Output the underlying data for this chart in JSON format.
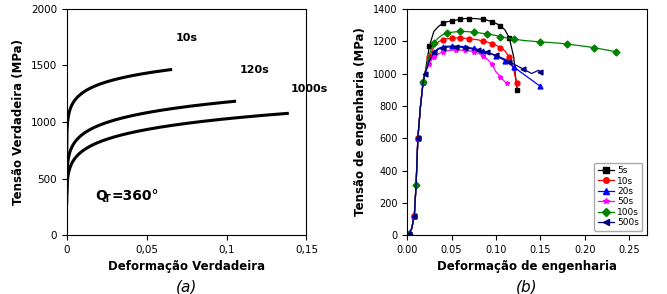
{
  "left": {
    "xlabel": "Deformação Verdadeira",
    "ylabel": "Tensão Verdadeira (MPa)",
    "xlim": [
      0,
      0.15
    ],
    "ylim": [
      0,
      2000
    ],
    "xticks": [
      0,
      0.05,
      0.1,
      0.15
    ],
    "xtick_labels": [
      "0",
      "0,05",
      "0,1",
      "0,15"
    ],
    "yticks": [
      0,
      500,
      1000,
      1500,
      2000
    ],
    "annotation": "Q",
    "annotation2": "=360°",
    "curves": [
      {
        "label": "10s",
        "C": 1820,
        "n": 0.08,
        "x_end": 0.065,
        "x_label": 0.068,
        "y_label": 1720
      },
      {
        "label": "120s",
        "C": 1550,
        "n": 0.12,
        "x_end": 0.105,
        "x_label": 0.108,
        "y_label": 1430
      },
      {
        "label": "1000s",
        "C": 1420,
        "n": 0.14,
        "x_end": 0.138,
        "x_label": 0.14,
        "y_label": 1265
      }
    ],
    "caption": "(a)"
  },
  "right": {
    "xlabel": "Deformação de engenharia",
    "ylabel": "Tensão de engenharia (MPa)",
    "xlim": [
      0.0,
      0.27
    ],
    "ylim": [
      0,
      1400
    ],
    "xticks": [
      0.0,
      0.05,
      0.1,
      0.15,
      0.2,
      0.25
    ],
    "xtick_labels": [
      "0.00",
      "0.05",
      "0.10",
      "0.15",
      "0.20",
      "0.25"
    ],
    "yticks": [
      0,
      200,
      400,
      600,
      800,
      1000,
      1200,
      1400
    ],
    "legend_labels": [
      "5s",
      "10s",
      "20s",
      "50s",
      "100s",
      "500s"
    ],
    "legend_colors": [
      "#000000",
      "#ff0000",
      "#0000ff",
      "#ff00ff",
      "#008000",
      "#000080"
    ],
    "legend_markers": [
      "s",
      "o",
      "^",
      "*",
      "D",
      "<"
    ],
    "caption": "(b)",
    "curves": [
      {
        "label": "5s",
        "color": "#000000",
        "marker": "s",
        "x": [
          0.002,
          0.005,
          0.008,
          0.01,
          0.012,
          0.015,
          0.018,
          0.02,
          0.025,
          0.03,
          0.035,
          0.04,
          0.045,
          0.05,
          0.055,
          0.06,
          0.065,
          0.07,
          0.075,
          0.08,
          0.085,
          0.09,
          0.095,
          0.1,
          0.105,
          0.11,
          0.115,
          0.12,
          0.122,
          0.124
        ],
        "y": [
          10,
          40,
          120,
          310,
          600,
          800,
          950,
          1000,
          1170,
          1260,
          1290,
          1310,
          1320,
          1325,
          1330,
          1335,
          1340,
          1340,
          1340,
          1338,
          1335,
          1330,
          1320,
          1310,
          1295,
          1270,
          1220,
          1100,
          980,
          900
        ]
      },
      {
        "label": "10s",
        "color": "#ff0000",
        "marker": "o",
        "x": [
          0.002,
          0.005,
          0.008,
          0.01,
          0.012,
          0.015,
          0.018,
          0.02,
          0.025,
          0.03,
          0.035,
          0.04,
          0.045,
          0.05,
          0.055,
          0.06,
          0.065,
          0.07,
          0.075,
          0.08,
          0.085,
          0.09,
          0.095,
          0.1,
          0.105,
          0.11,
          0.115,
          0.12,
          0.122,
          0.124
        ],
        "y": [
          10,
          40,
          120,
          310,
          600,
          800,
          950,
          1000,
          1100,
          1165,
          1195,
          1210,
          1215,
          1218,
          1220,
          1220,
          1218,
          1215,
          1212,
          1208,
          1200,
          1195,
          1185,
          1175,
          1160,
          1140,
          1100,
          1020,
          970,
          940
        ]
      },
      {
        "label": "20s",
        "color": "#0000ff",
        "marker": "^",
        "x": [
          0.002,
          0.005,
          0.008,
          0.01,
          0.012,
          0.015,
          0.018,
          0.02,
          0.025,
          0.03,
          0.035,
          0.04,
          0.045,
          0.05,
          0.055,
          0.06,
          0.065,
          0.07,
          0.075,
          0.08,
          0.085,
          0.09,
          0.095,
          0.1,
          0.105,
          0.11,
          0.115,
          0.12,
          0.13,
          0.14,
          0.15
        ],
        "y": [
          10,
          40,
          120,
          310,
          600,
          800,
          950,
          1000,
          1080,
          1130,
          1155,
          1165,
          1168,
          1170,
          1170,
          1168,
          1165,
          1160,
          1155,
          1148,
          1140,
          1130,
          1120,
          1110,
          1095,
          1080,
          1060,
          1040,
          1000,
          960,
          920
        ]
      },
      {
        "label": "50s",
        "color": "#ff00ff",
        "marker": "*",
        "x": [
          0.002,
          0.005,
          0.008,
          0.01,
          0.012,
          0.015,
          0.018,
          0.02,
          0.025,
          0.028,
          0.03,
          0.035,
          0.04,
          0.045,
          0.05,
          0.055,
          0.06,
          0.065,
          0.07,
          0.075,
          0.08,
          0.085,
          0.09,
          0.095,
          0.1,
          0.105,
          0.108,
          0.11,
          0.112
        ],
        "y": [
          10,
          40,
          120,
          310,
          600,
          800,
          950,
          1000,
          1060,
          1090,
          1100,
          1120,
          1135,
          1140,
          1145,
          1145,
          1145,
          1143,
          1140,
          1135,
          1125,
          1110,
          1090,
          1060,
          1010,
          980,
          960,
          950,
          940
        ]
      },
      {
        "label": "100s",
        "color": "#008000",
        "marker": "D",
        "x": [
          0.002,
          0.005,
          0.008,
          0.01,
          0.012,
          0.015,
          0.018,
          0.02,
          0.025,
          0.03,
          0.035,
          0.04,
          0.045,
          0.05,
          0.055,
          0.06,
          0.065,
          0.07,
          0.075,
          0.08,
          0.085,
          0.09,
          0.095,
          0.1,
          0.105,
          0.11,
          0.115,
          0.12,
          0.13,
          0.14,
          0.15,
          0.16,
          0.17,
          0.18,
          0.19,
          0.2,
          0.21,
          0.22,
          0.23,
          0.235
        ],
        "y": [
          10,
          40,
          120,
          310,
          600,
          800,
          950,
          1000,
          1120,
          1190,
          1220,
          1240,
          1250,
          1255,
          1258,
          1260,
          1260,
          1258,
          1255,
          1252,
          1248,
          1244,
          1240,
          1235,
          1228,
          1222,
          1218,
          1213,
          1205,
          1200,
          1195,
          1192,
          1188,
          1182,
          1175,
          1168,
          1160,
          1150,
          1140,
          1135
        ]
      },
      {
        "label": "500s",
        "color": "#000080",
        "marker": "<",
        "x": [
          0.002,
          0.005,
          0.008,
          0.01,
          0.012,
          0.015,
          0.018,
          0.02,
          0.025,
          0.03,
          0.035,
          0.04,
          0.045,
          0.05,
          0.055,
          0.06,
          0.065,
          0.07,
          0.075,
          0.08,
          0.085,
          0.09,
          0.095,
          0.1,
          0.105,
          0.11,
          0.115,
          0.12,
          0.13,
          0.14,
          0.148,
          0.15
        ],
        "y": [
          10,
          40,
          120,
          310,
          600,
          800,
          950,
          1000,
          1080,
          1130,
          1150,
          1160,
          1163,
          1165,
          1165,
          1163,
          1160,
          1155,
          1150,
          1144,
          1138,
          1130,
          1122,
          1112,
          1100,
          1088,
          1074,
          1058,
          1030,
          1000,
          1020,
          1010
        ]
      }
    ]
  },
  "fig_background": "#ffffff",
  "caption_fontsize": 11
}
